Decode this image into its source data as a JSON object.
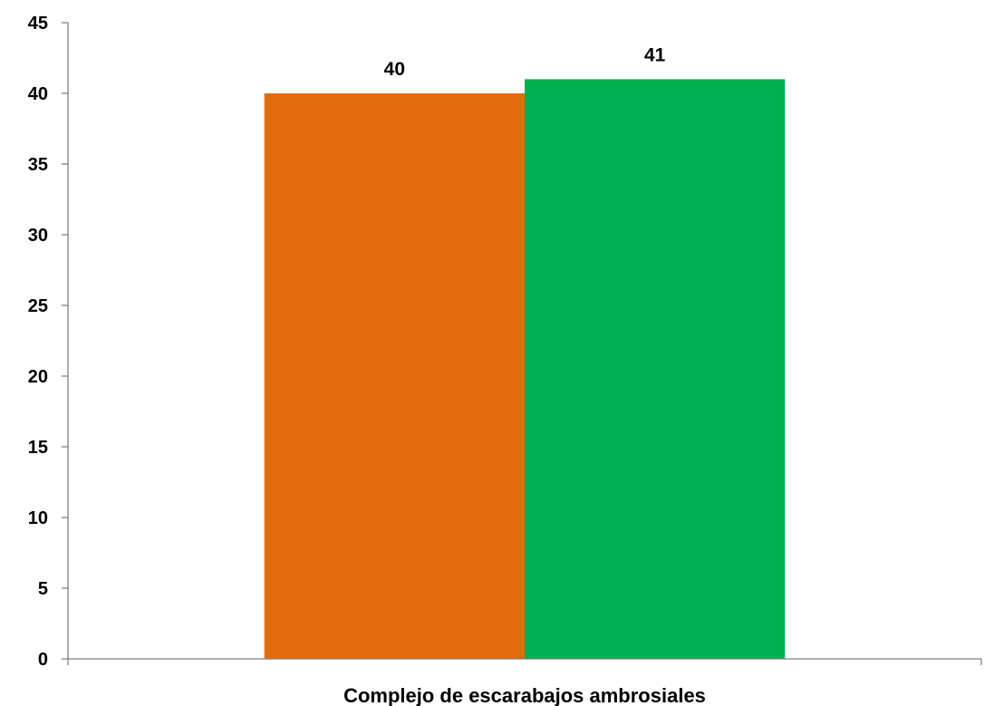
{
  "chart_data": {
    "type": "bar",
    "categories": [
      "Complejo de escarabajos ambrosiales"
    ],
    "series": [
      {
        "values": [
          40
        ],
        "color": "#E36C0A"
      },
      {
        "values": [
          41
        ],
        "color": "#00B050"
      }
    ],
    "ylim": [
      0,
      45
    ],
    "yticks": [
      0,
      5,
      10,
      15,
      20,
      25,
      30,
      35,
      40,
      45
    ],
    "data_labels": true,
    "grid": false,
    "legend": "none"
  }
}
